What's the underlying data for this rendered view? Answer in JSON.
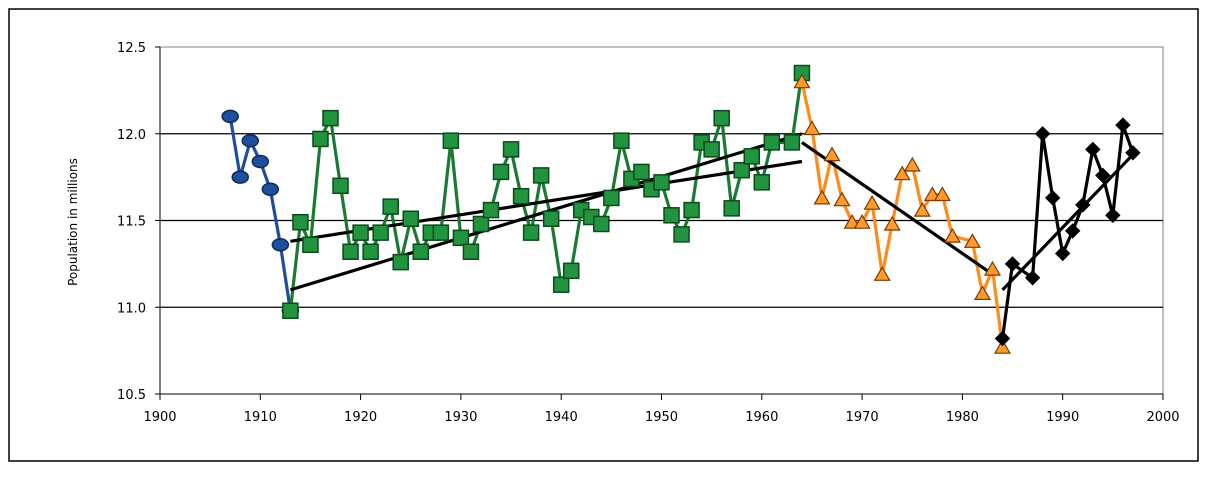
{
  "chart_data": {
    "type": "line",
    "title": "",
    "xlabel": "",
    "ylabel": "Population in millions",
    "xlim": [
      1900,
      2000
    ],
    "ylim": [
      10.5,
      12.5
    ],
    "x_ticks": [
      "1900",
      "1910",
      "1920",
      "1930",
      "1940",
      "1950",
      "1960",
      "1970",
      "1980",
      "1990",
      "2000"
    ],
    "y_ticks": [
      "10.5",
      "11.0",
      "11.5",
      "12.0",
      "12.5"
    ],
    "grid": "horizontal",
    "legend": "none",
    "series": [
      {
        "marker": "circle",
        "color": "#1f4e9c",
        "fill": "#1f4e9c",
        "x": [
          1907,
          1908,
          1909,
          1910,
          1911,
          1912,
          1913
        ],
        "y": [
          12.1,
          11.75,
          11.96,
          11.84,
          11.68,
          11.36,
          10.98
        ]
      },
      {
        "marker": "square",
        "color": "#1a7a32",
        "fill": "#22943f",
        "x": [
          1913,
          1914,
          1915,
          1916,
          1917,
          1918,
          1919,
          1920,
          1921,
          1922,
          1923,
          1924,
          1925,
          1926,
          1927,
          1928,
          1929,
          1930,
          1931,
          1932,
          1933,
          1934,
          1935,
          1936,
          1937,
          1938,
          1939,
          1940,
          1941,
          1942,
          1943,
          1944,
          1945,
          1946,
          1947,
          1948,
          1949,
          1950,
          1951,
          1952,
          1953,
          1954,
          1955,
          1956,
          1957,
          1958,
          1959,
          1960,
          1961,
          1963,
          1964
        ],
        "y": [
          10.98,
          11.49,
          11.36,
          11.97,
          12.09,
          11.7,
          11.32,
          11.43,
          11.32,
          11.43,
          11.58,
          11.26,
          11.51,
          11.32,
          11.43,
          11.43,
          11.96,
          11.4,
          11.32,
          11.48,
          11.56,
          11.78,
          11.91,
          11.64,
          11.43,
          11.76,
          11.51,
          11.13,
          11.21,
          11.56,
          11.52,
          11.48,
          11.63,
          11.96,
          11.74,
          11.78,
          11.68,
          11.72,
          11.53,
          11.42,
          11.56,
          11.95,
          11.91,
          12.09,
          11.57,
          11.79,
          11.87,
          11.72,
          11.95,
          11.95,
          12.35
        ]
      },
      {
        "marker": "triangle",
        "color": "#ff8c1a",
        "fill": "#ff9a2e",
        "x": [
          1964,
          1965,
          1966,
          1967,
          1968,
          1969,
          1970,
          1971,
          1972,
          1973,
          1974,
          1975,
          1976,
          1977,
          1978,
          1979,
          1981,
          1982,
          1983,
          1984
        ],
        "y": [
          12.3,
          12.03,
          11.63,
          11.88,
          11.62,
          11.49,
          11.49,
          11.6,
          11.19,
          11.48,
          11.77,
          11.82,
          11.56,
          11.65,
          11.65,
          11.41,
          11.38,
          11.08,
          11.22,
          10.77
        ]
      },
      {
        "marker": "diamond",
        "color": "#000000",
        "fill": "#000000",
        "x": [
          1984,
          1985,
          1987,
          1988,
          1989,
          1990,
          1991,
          1992,
          1993,
          1994,
          1995,
          1996,
          1997
        ],
        "y": [
          10.82,
          11.25,
          11.17,
          12.0,
          11.63,
          11.31,
          11.44,
          11.59,
          11.91,
          11.76,
          11.53,
          12.05,
          11.89
        ]
      }
    ],
    "trendlines": [
      {
        "color": "#000000",
        "x": [
          1913,
          1964
        ],
        "y": [
          11.1,
          12.0
        ]
      },
      {
        "color": "#000000",
        "x": [
          1913,
          1964
        ],
        "y": [
          11.38,
          11.84
        ]
      },
      {
        "color": "#000000",
        "x": [
          1964,
          1983
        ],
        "y": [
          11.95,
          11.19
        ]
      },
      {
        "color": "#000000",
        "x": [
          1984,
          1997
        ],
        "y": [
          11.1,
          11.88
        ]
      }
    ]
  }
}
